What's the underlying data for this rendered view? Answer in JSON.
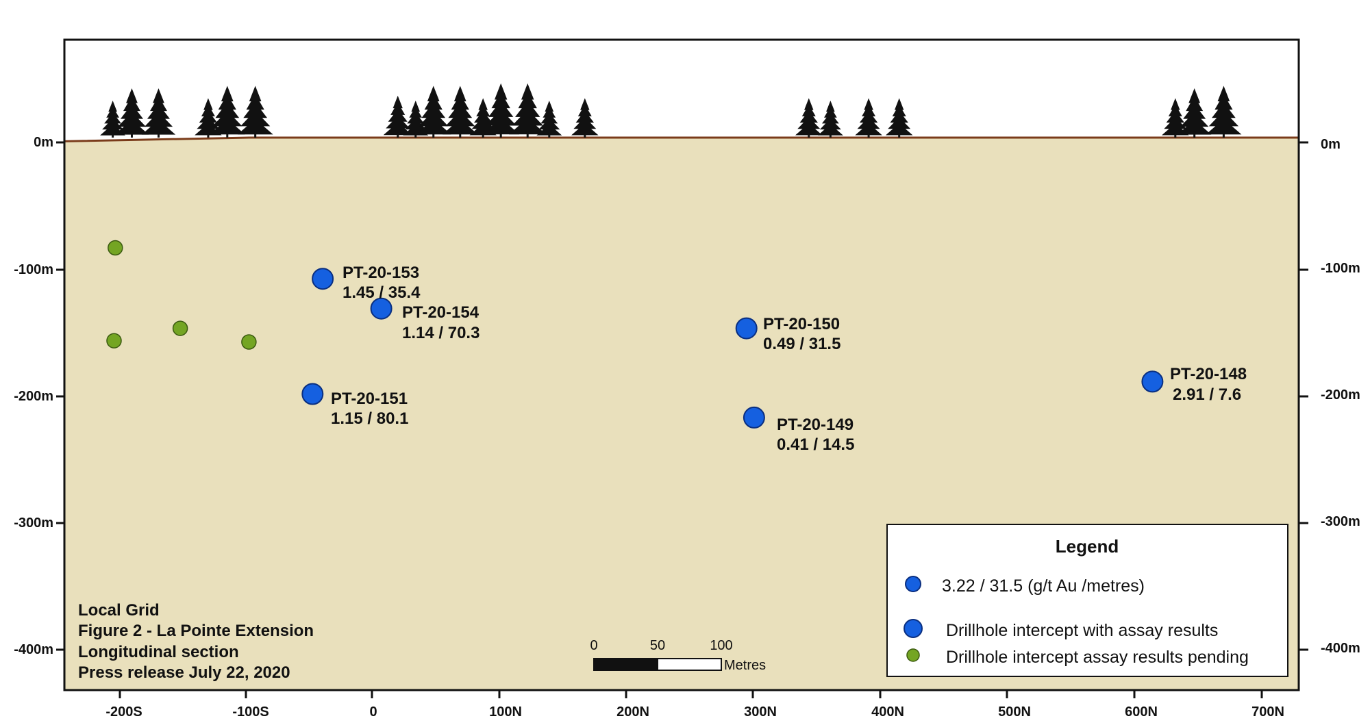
{
  "colors": {
    "ground": "#e9e0bc",
    "sky": "#ffffff",
    "surface_line": "#7a3b1a",
    "assay_intercept": "#1560e0",
    "pending_intercept": "#74a523",
    "tree": "#111111"
  },
  "depth_axis": {
    "labels": [
      "0m",
      "-100m",
      "-200m",
      "-300m",
      "-400m"
    ]
  },
  "northing_axis": {
    "labels": [
      "-200S",
      "-100S",
      "0",
      "100N",
      "200N",
      "300N",
      "400N",
      "500N",
      "600N",
      "700N"
    ]
  },
  "chart_data": {
    "type": "scatter",
    "x_unit": "local grid northing (m)",
    "y_unit": "elevation (m)",
    "xlim": [
      -245,
      725
    ],
    "ylim": [
      -445,
      80
    ],
    "surface_profile": {
      "x": [
        -245,
        -100,
        0,
        725
      ],
      "y": [
        -2,
        1,
        1,
        1
      ]
    },
    "drillholes": [
      {
        "id": "PT-20-153",
        "x": -42,
        "y": -113,
        "value": "1.45 / 35.4",
        "status": "assay"
      },
      {
        "id": "PT-20-154",
        "x": 4,
        "y": -137,
        "value": "1.14 / 70.3",
        "status": "assay"
      },
      {
        "id": "PT-20-151",
        "x": -50,
        "y": -206,
        "value": "1.15 / 80.1",
        "status": "assay"
      },
      {
        "id": "PT-20-150",
        "x": 291,
        "y": -153,
        "value": "0.49 / 31.5",
        "status": "assay"
      },
      {
        "id": "PT-20-149",
        "x": 297,
        "y": -225,
        "value": "0.41  / 14.5",
        "status": "assay"
      },
      {
        "id": "PT-20-148",
        "x": 610,
        "y": -196,
        "value": "2.91  / 7.6",
        "status": "assay"
      },
      {
        "id": "",
        "x": -205,
        "y": -88,
        "value": "",
        "status": "pending"
      },
      {
        "id": "",
        "x": -206,
        "y": -163,
        "value": "",
        "status": "pending"
      },
      {
        "id": "",
        "x": -154,
        "y": -153,
        "value": "",
        "status": "pending"
      },
      {
        "id": "",
        "x": -100,
        "y": -164,
        "value": "",
        "status": "pending"
      }
    ],
    "trees": [
      {
        "x": -207,
        "s": 0.75
      },
      {
        "x": -192,
        "s": 1.0
      },
      {
        "x": -171,
        "s": 1.0
      },
      {
        "x": -132,
        "s": 0.8
      },
      {
        "x": -117,
        "s": 1.05
      },
      {
        "x": -95,
        "s": 1.05
      },
      {
        "x": 17,
        "s": 0.85
      },
      {
        "x": 31,
        "s": 0.75
      },
      {
        "x": 45,
        "s": 1.05
      },
      {
        "x": 66,
        "s": 1.05
      },
      {
        "x": 84,
        "s": 0.8
      },
      {
        "x": 98,
        "s": 1.1
      },
      {
        "x": 119,
        "s": 1.1
      },
      {
        "x": 136,
        "s": 0.75
      },
      {
        "x": 164,
        "s": 0.8
      },
      {
        "x": 340,
        "s": 0.8
      },
      {
        "x": 357,
        "s": 0.75
      },
      {
        "x": 387,
        "s": 0.8
      },
      {
        "x": 411,
        "s": 0.8
      },
      {
        "x": 628,
        "s": 0.8
      },
      {
        "x": 643,
        "s": 1.0
      },
      {
        "x": 666,
        "s": 1.05
      }
    ]
  },
  "info_block": {
    "line1": "Local Grid",
    "line2": "Figure 2 - La Pointe Extension",
    "line3": "Longitudinal section",
    "line4": "Press release July 22, 2020"
  },
  "scale_bar": {
    "ticks": [
      "0",
      "50",
      "100"
    ],
    "unit": "Metres"
  },
  "legend": {
    "title": "Legend",
    "example_text": "3.22 / 31.5 (g/t Au /metres)",
    "assay_text": "Drillhole intercept with assay results",
    "pending_text": "Drillhole intercept assay results pending"
  }
}
